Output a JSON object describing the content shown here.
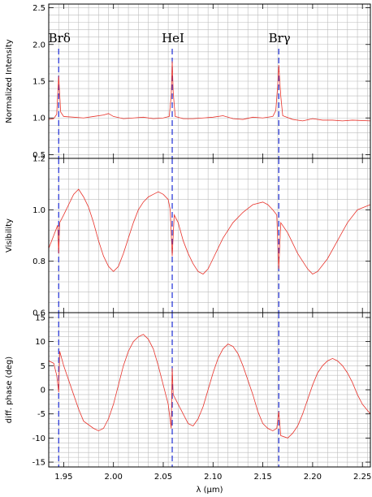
{
  "chart_data": {
    "type": "line",
    "xlabel": "λ (μm)",
    "xlim": [
      1.935,
      2.258
    ],
    "xticks": [
      1.95,
      2.0,
      2.05,
      2.1,
      2.15,
      2.2,
      2.25
    ],
    "xtick_labels": [
      "1.95",
      "2.00",
      "2.05",
      "2.10",
      "2.15",
      "2.20",
      "2.25"
    ],
    "grid": true,
    "line_color": "#e8322a",
    "marker_color": "#1f2fd6",
    "spectral_lines": [
      {
        "label": "Brδ",
        "x": 1.945
      },
      {
        "label": "HeI",
        "x": 2.059
      },
      {
        "label": "Brγ",
        "x": 2.166
      }
    ],
    "panels": [
      {
        "id": "intensity",
        "ylabel": "Normalized Intensity",
        "ylim": [
          0.45,
          2.55
        ],
        "yticks": [
          0.5,
          1.0,
          1.5,
          2.0,
          2.5
        ],
        "ytick_labels": [
          "0.5",
          "1.0",
          "1.5",
          "2.0",
          "2.5"
        ],
        "series": [
          {
            "values": [
              [
                1.935,
                0.98
              ],
              [
                1.94,
                0.99
              ],
              [
                1.943,
                1.05
              ],
              [
                1.945,
                1.57
              ],
              [
                1.947,
                1.08
              ],
              [
                1.95,
                1.02
              ],
              [
                1.96,
                1.01
              ],
              [
                1.97,
                1.0
              ],
              [
                1.98,
                1.02
              ],
              [
                1.99,
                1.04
              ],
              [
                1.995,
                1.06
              ],
              [
                2.0,
                1.02
              ],
              [
                2.01,
                0.99
              ],
              [
                2.02,
                1.0
              ],
              [
                2.03,
                1.01
              ],
              [
                2.04,
                0.99
              ],
              [
                2.05,
                1.0
              ],
              [
                2.056,
                1.02
              ],
              [
                2.058,
                1.3
              ],
              [
                2.059,
                1.77
              ],
              [
                2.06,
                1.35
              ],
              [
                2.062,
                1.02
              ],
              [
                2.07,
                0.99
              ],
              [
                2.08,
                0.99
              ],
              [
                2.09,
                1.0
              ],
              [
                2.1,
                1.01
              ],
              [
                2.11,
                1.03
              ],
              [
                2.12,
                0.99
              ],
              [
                2.13,
                0.98
              ],
              [
                2.14,
                1.01
              ],
              [
                2.15,
                1.0
              ],
              [
                2.16,
                1.02
              ],
              [
                2.163,
                1.1
              ],
              [
                2.165,
                1.45
              ],
              [
                2.166,
                1.72
              ],
              [
                2.168,
                1.3
              ],
              [
                2.17,
                1.03
              ],
              [
                2.18,
                0.98
              ],
              [
                2.19,
                0.96
              ],
              [
                2.2,
                0.99
              ],
              [
                2.21,
                0.97
              ],
              [
                2.22,
                0.97
              ],
              [
                2.23,
                0.96
              ],
              [
                2.24,
                0.97
              ],
              [
                2.258,
                0.96
              ]
            ]
          }
        ]
      },
      {
        "id": "visibility",
        "ylabel": "Visibility",
        "ylim": [
          0.6,
          1.2
        ],
        "yticks": [
          0.6,
          0.8,
          1.0,
          1.2
        ],
        "ytick_labels": [
          "0.6",
          "0.8",
          "1.0",
          "1.2"
        ],
        "series": [
          {
            "values": [
              [
                1.935,
                0.85
              ],
              [
                1.94,
                0.9
              ],
              [
                1.944,
                0.94
              ],
              [
                1.945,
                0.83
              ],
              [
                1.946,
                0.95
              ],
              [
                1.95,
                0.98
              ],
              [
                1.955,
                1.02
              ],
              [
                1.96,
                1.06
              ],
              [
                1.965,
                1.08
              ],
              [
                1.97,
                1.05
              ],
              [
                1.975,
                1.01
              ],
              [
                1.98,
                0.95
              ],
              [
                1.985,
                0.88
              ],
              [
                1.99,
                0.82
              ],
              [
                1.995,
                0.78
              ],
              [
                2.0,
                0.76
              ],
              [
                2.005,
                0.78
              ],
              [
                2.01,
                0.83
              ],
              [
                2.015,
                0.89
              ],
              [
                2.02,
                0.95
              ],
              [
                2.025,
                1.0
              ],
              [
                2.03,
                1.03
              ],
              [
                2.035,
                1.05
              ],
              [
                2.04,
                1.06
              ],
              [
                2.045,
                1.07
              ],
              [
                2.05,
                1.06
              ],
              [
                2.055,
                1.04
              ],
              [
                2.057,
                1.0
              ],
              [
                2.059,
                0.82
              ],
              [
                2.061,
                0.98
              ],
              [
                2.065,
                0.95
              ],
              [
                2.07,
                0.88
              ],
              [
                2.075,
                0.83
              ],
              [
                2.08,
                0.79
              ],
              [
                2.085,
                0.76
              ],
              [
                2.09,
                0.75
              ],
              [
                2.095,
                0.77
              ],
              [
                2.1,
                0.81
              ],
              [
                2.11,
                0.89
              ],
              [
                2.12,
                0.95
              ],
              [
                2.13,
                0.99
              ],
              [
                2.14,
                1.02
              ],
              [
                2.15,
                1.03
              ],
              [
                2.155,
                1.02
              ],
              [
                2.16,
                1.0
              ],
              [
                2.164,
                0.98
              ],
              [
                2.166,
                0.77
              ],
              [
                2.168,
                0.95
              ],
              [
                2.175,
                0.91
              ],
              [
                2.185,
                0.83
              ],
              [
                2.195,
                0.77
              ],
              [
                2.2,
                0.75
              ],
              [
                2.205,
                0.76
              ],
              [
                2.215,
                0.81
              ],
              [
                2.225,
                0.88
              ],
              [
                2.235,
                0.95
              ],
              [
                2.245,
                1.0
              ],
              [
                2.258,
                1.02
              ]
            ]
          }
        ]
      },
      {
        "id": "phase",
        "ylabel": "diff. phase (deg)",
        "ylim": [
          -16,
          16
        ],
        "yticks": [
          -15,
          -10,
          -5,
          0,
          5,
          10,
          15
        ],
        "ytick_labels": [
          "-15",
          "-10",
          "-5",
          "0",
          "5",
          "10",
          "15"
        ],
        "series": [
          {
            "values": [
              [
                1.935,
                6.0
              ],
              [
                1.94,
                5.5
              ],
              [
                1.943,
                3.0
              ],
              [
                1.945,
                -0.5
              ],
              [
                1.946,
                8.0
              ],
              [
                1.95,
                5.0
              ],
              [
                1.955,
                2.0
              ],
              [
                1.96,
                -1.0
              ],
              [
                1.965,
                -4.0
              ],
              [
                1.97,
                -6.5
              ],
              [
                1.98,
                -8.0
              ],
              [
                1.985,
                -8.5
              ],
              [
                1.99,
                -8.0
              ],
              [
                1.995,
                -6.0
              ],
              [
                2.0,
                -3.0
              ],
              [
                2.005,
                1.0
              ],
              [
                2.01,
                5.0
              ],
              [
                2.015,
                8.0
              ],
              [
                2.02,
                10.0
              ],
              [
                2.025,
                11.0
              ],
              [
                2.03,
                11.5
              ],
              [
                2.035,
                10.5
              ],
              [
                2.04,
                8.5
              ],
              [
                2.045,
                5.0
              ],
              [
                2.05,
                1.0
              ],
              [
                2.055,
                -3.0
              ],
              [
                2.058,
                -8.0
              ],
              [
                2.059,
                4.5
              ],
              [
                2.06,
                -1.0
              ],
              [
                2.065,
                -3.0
              ],
              [
                2.07,
                -5.0
              ],
              [
                2.075,
                -7.0
              ],
              [
                2.08,
                -7.5
              ],
              [
                2.085,
                -6.0
              ],
              [
                2.09,
                -3.5
              ],
              [
                2.095,
                0.0
              ],
              [
                2.1,
                3.5
              ],
              [
                2.105,
                6.5
              ],
              [
                2.11,
                8.5
              ],
              [
                2.115,
                9.5
              ],
              [
                2.12,
                9.0
              ],
              [
                2.125,
                7.5
              ],
              [
                2.13,
                5.0
              ],
              [
                2.135,
                2.0
              ],
              [
                2.14,
                -1.0
              ],
              [
                2.145,
                -4.5
              ],
              [
                2.15,
                -7.0
              ],
              [
                2.155,
                -8.0
              ],
              [
                2.16,
                -8.5
              ],
              [
                2.164,
                -8.0
              ],
              [
                2.166,
                -4.5
              ],
              [
                2.168,
                -9.5
              ],
              [
                2.175,
                -10.0
              ],
              [
                2.18,
                -9.0
              ],
              [
                2.185,
                -7.5
              ],
              [
                2.19,
                -5.0
              ],
              [
                2.195,
                -2.0
              ],
              [
                2.2,
                1.0
              ],
              [
                2.205,
                3.5
              ],
              [
                2.21,
                5.0
              ],
              [
                2.215,
                6.0
              ],
              [
                2.22,
                6.5
              ],
              [
                2.225,
                6.0
              ],
              [
                2.23,
                5.0
              ],
              [
                2.235,
                3.5
              ],
              [
                2.24,
                1.5
              ],
              [
                2.245,
                -1.0
              ],
              [
                2.25,
                -3.0
              ],
              [
                2.258,
                -5.0
              ]
            ]
          }
        ]
      }
    ]
  }
}
